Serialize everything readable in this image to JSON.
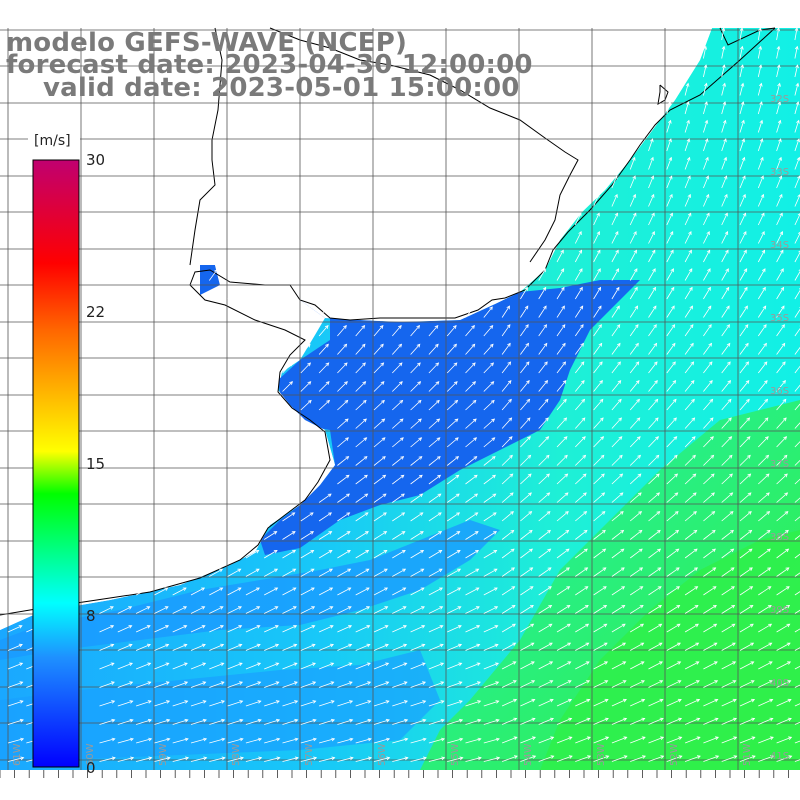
{
  "title": {
    "model": "modelo GEFS-WAVE (NCEP)",
    "forecast": "forecast date: 2023-04-30 12:00:00",
    "valid": "valid date: 2023-05-01 15:00:00"
  },
  "colorbar": {
    "unit": "[m/s]",
    "ticks": [
      "30",
      "22",
      "15",
      "8",
      "0"
    ],
    "stops": [
      "#0000ff",
      "#1e90ff",
      "#00ffff",
      "#00ff00",
      "#ffff00",
      "#ff0000",
      "#c00070"
    ]
  },
  "map": {
    "lat_labels": [
      "32S",
      "33S",
      "34S",
      "35S",
      "36S",
      "37S",
      "38S",
      "39S",
      "40S",
      "41S"
    ],
    "lon_labels": [
      "61W",
      "60W",
      "59W",
      "58W",
      "57W",
      "56W",
      "55W",
      "54W",
      "53W",
      "52W",
      "51W"
    ],
    "field_colors": {
      "low": "#1566ee",
      "mid": "#19b8ff",
      "cyan": "#12f0e6",
      "green": "#2ff04a"
    },
    "coast_color": "#000000",
    "grid_color": "#555555",
    "arrow_color": "#ffffff",
    "wind_direction": "from SW (arrows pointing NE)"
  }
}
